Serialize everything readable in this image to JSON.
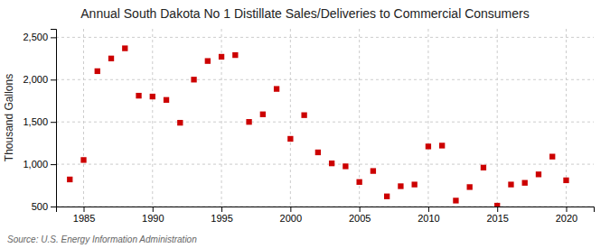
{
  "chart_data": {
    "type": "scatter",
    "title": "Annual South Dakota No 1 Distillate Sales/Deliveries to Commercial Consumers",
    "y_label": "Thousand Gallons",
    "annotations": [
      "Source: U.S. Energy Information Administration"
    ],
    "x": [
      1984,
      1985,
      1986,
      1987,
      1988,
      1989,
      1990,
      1991,
      1992,
      1993,
      1994,
      1995,
      1996,
      1997,
      1998,
      1999,
      2000,
      2001,
      2002,
      2003,
      2004,
      2005,
      2006,
      2007,
      2008,
      2009,
      2010,
      2011,
      2012,
      2013,
      2014,
      2015,
      2016,
      2017,
      2018,
      2019,
      2020
    ],
    "values": [
      820,
      1050,
      2100,
      2250,
      2370,
      1810,
      1800,
      1760,
      1490,
      2000,
      2220,
      2270,
      2290,
      1500,
      1590,
      1890,
      1300,
      1580,
      1140,
      1010,
      975,
      790,
      920,
      620,
      740,
      760,
      1210,
      1220,
      570,
      730,
      960,
      510,
      760,
      780,
      880,
      1090,
      810
    ],
    "color": "#cc0000",
    "marker": "square",
    "xlim": [
      1983,
      2022
    ],
    "ylim": [
      500,
      2600
    ],
    "xticks": [
      1985,
      1990,
      1995,
      2000,
      2005,
      2010,
      2015,
      2020
    ],
    "yticks": [
      500,
      {
        "value": 1000,
        "label": "1,000"
      },
      {
        "value": 1500,
        "label": "1,500"
      },
      {
        "value": 2000,
        "label": "2,000"
      },
      {
        "value": 2500,
        "label": "2,500"
      }
    ],
    "grid": true
  }
}
